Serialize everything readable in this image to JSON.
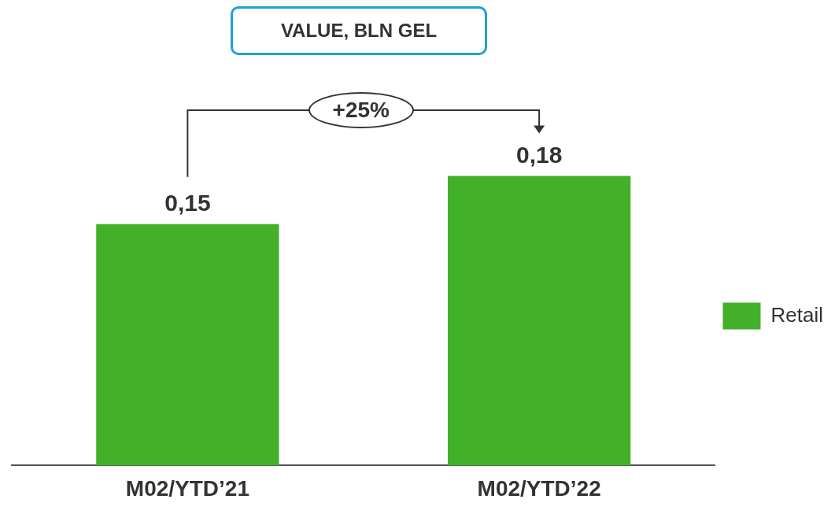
{
  "chart_data": {
    "type": "bar",
    "title": "VALUE, BLN GEL",
    "categories": [
      "M02/YTD’21",
      "M02/YTD’22"
    ],
    "series": [
      {
        "name": "Retail",
        "color": "#43b02a",
        "values": [
          0.15,
          0.18
        ],
        "value_labels": [
          "0,15",
          "0,18"
        ]
      }
    ],
    "annotations": [
      "+25%"
    ],
    "legend": "right",
    "grid": false
  }
}
